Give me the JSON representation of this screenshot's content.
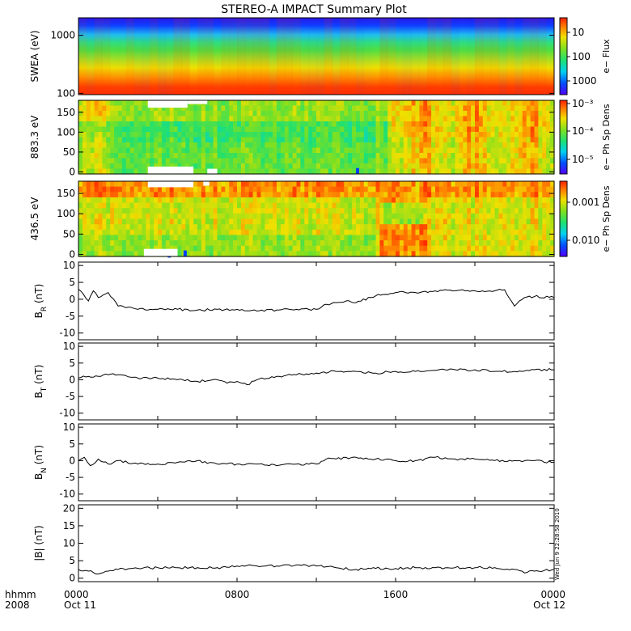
{
  "title": "STEREO-A IMPACT Summary Plot",
  "timestamp": "Wed Jun  9 22:28:58 2010",
  "chart_data": [
    {
      "type": "heatmap",
      "panel": "swea",
      "ylabel": "SWEA (eV)",
      "yscale": "log",
      "ylim": [
        95,
        2000
      ],
      "yticks": [
        "100",
        "1000"
      ],
      "colorbar_label": "e− Flux",
      "colorbar_scale": "log",
      "colorbar_range": [
        3,
        3000
      ],
      "colorbar_ticks": [
        "10",
        "100",
        "1000"
      ],
      "colormap": "rainbow"
    },
    {
      "type": "heatmap",
      "panel": "pad883",
      "ylabel": "883.3 eV",
      "ylim": [
        -5,
        180
      ],
      "yticks": [
        "0",
        "50",
        "100",
        "150"
      ],
      "colorbar_label": "e− Ph Sp Dens",
      "colorbar_scale": "log",
      "colorbar_range": [
        5e-06,
        0.001
      ],
      "colorbar_ticks": [
        "10⁻⁵",
        "10⁻⁴",
        "10⁻³"
      ],
      "colormap": "rainbow"
    },
    {
      "type": "heatmap",
      "panel": "pad436",
      "ylabel": "436.5 eV",
      "ylim": [
        -5,
        180
      ],
      "yticks": [
        "0",
        "50",
        "100",
        "150"
      ],
      "colorbar_label": "e− Ph Sp Dens",
      "colorbar_scale": "log",
      "colorbar_range": [
        0.0004,
        0.03
      ],
      "colorbar_ticks": [
        "0.001",
        "0.010"
      ],
      "colormap": "rainbow"
    },
    {
      "type": "line",
      "panel": "br",
      "ylabel": "B",
      "ysub": "R",
      "yunit": " (nT)",
      "ylim": [
        -12,
        11
      ],
      "yticks": [
        -10,
        -5,
        0,
        5,
        10
      ],
      "x": [
        0,
        0.25,
        0.5,
        0.75,
        1,
        1.5,
        2,
        3,
        4,
        5,
        6,
        7,
        8,
        9,
        10,
        11,
        12,
        12.5,
        13,
        13.5,
        14,
        15,
        16,
        16.5,
        17,
        18,
        19,
        20,
        21,
        21.5,
        22,
        22.5,
        23,
        24
      ],
      "values": [
        3,
        1.5,
        -0.5,
        2.5,
        0.5,
        2,
        -2,
        -3,
        -3,
        -3,
        -3.2,
        -3,
        -3,
        -3.5,
        -3.2,
        -3,
        -3,
        -1.5,
        -1,
        -0.5,
        -1,
        1,
        2,
        2,
        2,
        2.5,
        2.5,
        2.5,
        2.5,
        2.8,
        -2,
        0.5,
        0.8,
        0.5
      ]
    },
    {
      "type": "line",
      "panel": "bt",
      "ylabel": "B",
      "ysub": "T",
      "yunit": " (nT)",
      "ylim": [
        -12,
        11
      ],
      "yticks": [
        -10,
        -5,
        0,
        5,
        10
      ],
      "x": [
        0,
        0.5,
        1,
        1.5,
        2,
        3,
        4,
        5,
        6,
        7,
        7.5,
        8,
        8.5,
        9,
        10,
        11,
        12,
        13,
        14,
        15,
        16,
        17,
        18,
        19,
        20,
        21,
        22,
        23,
        24
      ],
      "values": [
        0.5,
        1,
        1,
        1.5,
        1.5,
        0.5,
        0.5,
        0,
        -0.5,
        0,
        -1,
        -0.5,
        -1.5,
        0,
        1,
        1.5,
        2,
        2.5,
        2.5,
        2,
        2.5,
        2.5,
        2.8,
        3,
        3,
        2.5,
        2.5,
        3,
        3
      ]
    },
    {
      "type": "line",
      "panel": "bn",
      "ylabel": "B",
      "ysub": "N",
      "yunit": " (nT)",
      "ylim": [
        -12,
        11
      ],
      "yticks": [
        -10,
        -5,
        0,
        5,
        10
      ],
      "x": [
        0,
        0.3,
        0.6,
        1,
        1.5,
        2,
        3,
        4,
        5,
        6,
        7,
        8,
        9,
        10,
        11,
        12,
        12.5,
        13,
        14,
        15,
        16,
        17,
        18,
        19,
        20,
        21,
        22,
        23,
        24
      ],
      "values": [
        0,
        1,
        -1.5,
        0.5,
        -1,
        0,
        -1,
        -1,
        -0.5,
        0,
        -1,
        -1,
        -1,
        -1.5,
        -1,
        -1,
        0.5,
        0.5,
        1,
        0.5,
        0,
        0,
        1,
        0.5,
        0.5,
        0,
        0,
        0,
        -0.5
      ]
    },
    {
      "type": "line",
      "panel": "bmag",
      "ylabel": "|B| (nT)",
      "ylim": [
        -1,
        21
      ],
      "yticks": [
        0,
        5,
        10,
        15,
        20
      ],
      "x": [
        0,
        0.5,
        1,
        1.5,
        2,
        3,
        4,
        5,
        6,
        7,
        8,
        9,
        10,
        11,
        12,
        13,
        14,
        15,
        16,
        17,
        18,
        19,
        20,
        21,
        22,
        22.5,
        23,
        24
      ],
      "values": [
        2.5,
        2,
        1.2,
        2,
        2.5,
        2.8,
        3,
        3,
        3,
        3,
        3.5,
        3.5,
        3.5,
        3.8,
        3.5,
        3,
        2.5,
        2.8,
        2.8,
        3,
        3,
        3,
        3,
        3,
        2.5,
        1.5,
        2,
        2.5
      ]
    },
    {
      "type": "axis",
      "panel": "time",
      "xlim": [
        0,
        24
      ],
      "xaxis_left": [
        "hhmm",
        "2008"
      ],
      "xticks": [
        {
          "x": 0,
          "top": "0000",
          "bottom": "Oct 11"
        },
        {
          "x": 8,
          "top": "0800",
          "bottom": ""
        },
        {
          "x": 16,
          "top": "1600",
          "bottom": ""
        },
        {
          "x": 24,
          "top": "0000",
          "bottom": "Oct 12"
        }
      ]
    }
  ]
}
